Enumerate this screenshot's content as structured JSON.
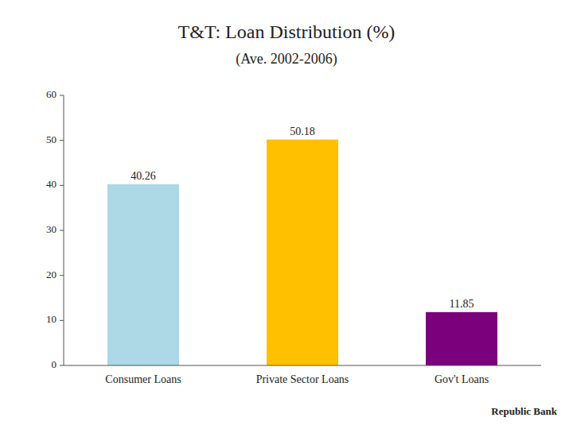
{
  "chart_data": {
    "type": "bar",
    "title": "T&T: Loan Distribution (%)",
    "subtitle": "(Ave. 2002-2006)",
    "categories": [
      "Consumer Loans",
      "Private Sector Loans",
      "Gov't Loans"
    ],
    "values": [
      40.26,
      50.18,
      11.85
    ],
    "colors": [
      "#add8e6",
      "#ffc000",
      "#7b007b"
    ],
    "ylim": [
      0,
      60
    ],
    "yticks": [
      0,
      10,
      20,
      30,
      40,
      50,
      60
    ],
    "grid": false,
    "data_labels": true,
    "annotations": [
      "Republic Bank"
    ]
  }
}
